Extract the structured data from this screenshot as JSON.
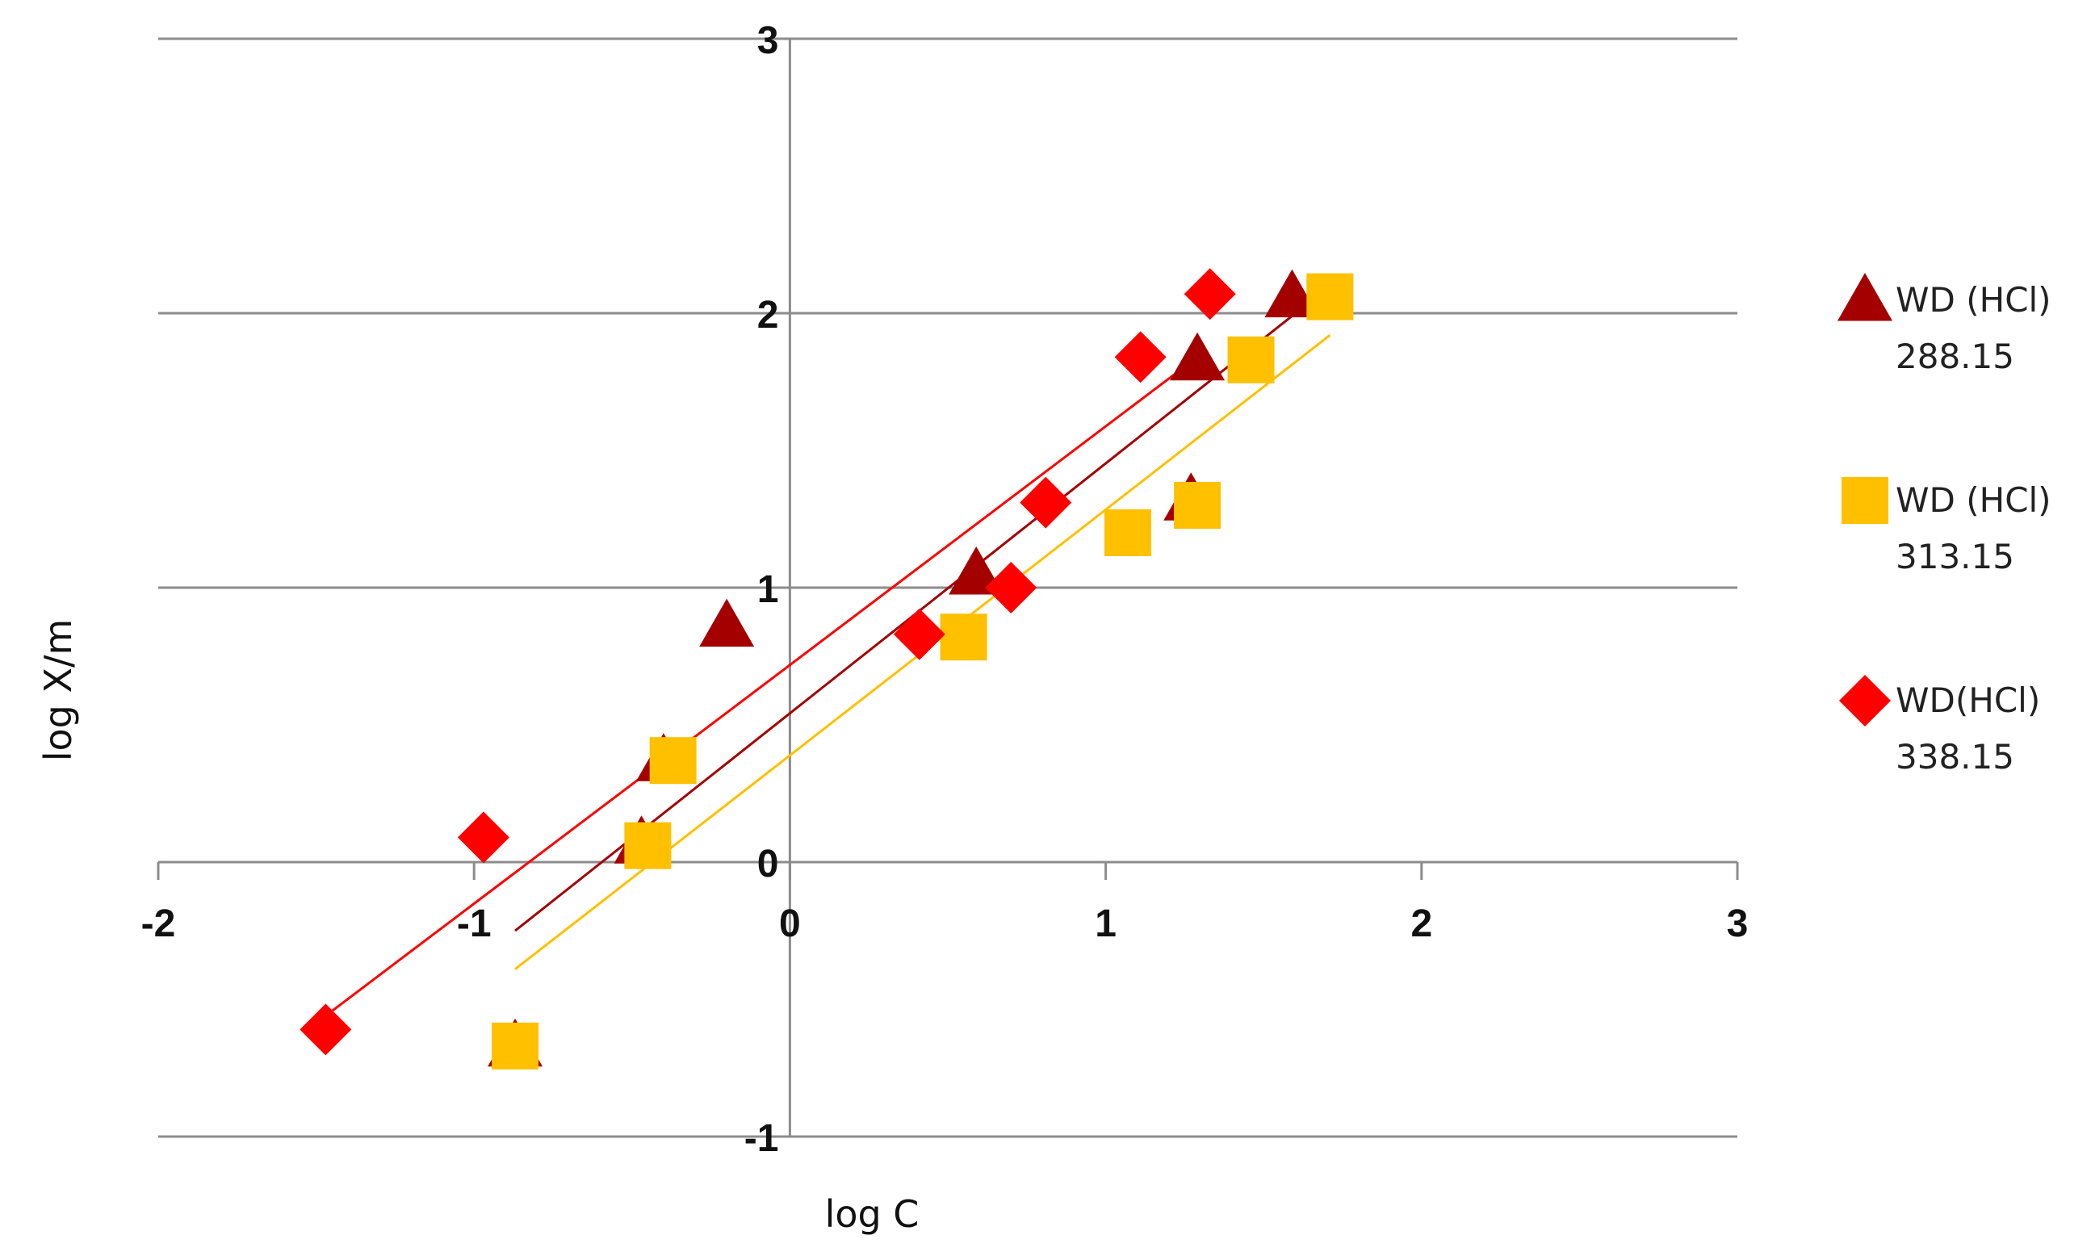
{
  "chart_data": {
    "type": "scatter",
    "title": "",
    "xlabel": "log C",
    "ylabel": "log X/m",
    "xlim": [
      -2,
      3
    ],
    "ylim": [
      -1,
      3
    ],
    "xticks": [
      "-2",
      "-1",
      "0",
      "1",
      "2",
      "3"
    ],
    "yticks": [
      "-1",
      "0",
      "1",
      "2",
      "3"
    ],
    "grid": "horizontal",
    "legend_position": "right",
    "series": [
      {
        "name_line1": "WD (HCl)",
        "name_line2": "288.15",
        "marker": "triangle",
        "color": "#A50000",
        "points": [
          [
            -0.87,
            -0.67
          ],
          [
            -0.47,
            0.07
          ],
          [
            -0.4,
            0.37
          ],
          [
            -0.2,
            0.86
          ],
          [
            0.59,
            1.05
          ],
          [
            1.27,
            1.32
          ],
          [
            1.29,
            1.83
          ],
          [
            1.59,
            2.06
          ]
        ],
        "trendline": [
          [
            -0.87,
            -0.25
          ],
          [
            1.59,
            1.99
          ]
        ]
      },
      {
        "name_line1": "WD (HCl)",
        "name_line2": "313.15",
        "marker": "square",
        "color": "#FFC000",
        "points": [
          [
            -0.87,
            -0.67
          ],
          [
            -0.45,
            0.06
          ],
          [
            -0.37,
            0.37
          ],
          [
            0.55,
            0.82
          ],
          [
            1.07,
            1.2
          ],
          [
            1.29,
            1.3
          ],
          [
            1.46,
            1.83
          ],
          [
            1.71,
            2.06
          ]
        ],
        "trendline": [
          [
            -0.87,
            -0.39
          ],
          [
            1.71,
            1.92
          ]
        ]
      },
      {
        "name_line1": "WD(HCl)",
        "name_line2": "338.15",
        "marker": "diamond",
        "color": "#FF0000",
        "points": [
          [
            -1.47,
            -0.61
          ],
          [
            -0.97,
            0.09
          ],
          [
            0.41,
            0.83
          ],
          [
            0.7,
            1.0
          ],
          [
            0.81,
            1.31
          ],
          [
            1.11,
            1.84
          ],
          [
            1.33,
            2.07
          ]
        ],
        "trendline": [
          [
            -1.47,
            -0.56
          ],
          [
            1.29,
            1.84
          ]
        ]
      }
    ]
  }
}
